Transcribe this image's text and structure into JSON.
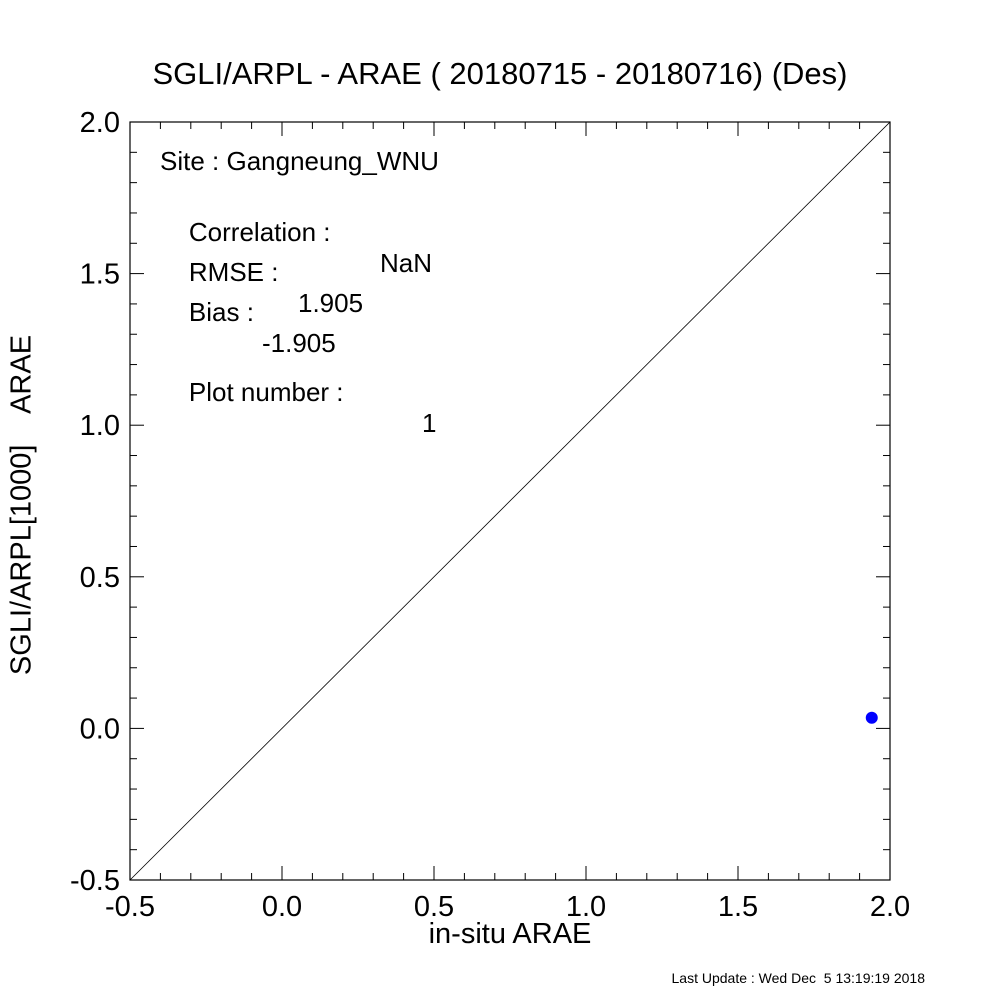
{
  "chart_data": {
    "type": "scatter",
    "title": "SGLI/ARPL - ARAE ( 20180715 - 20180716) (Des)",
    "xlabel": "in-situ ARAE",
    "ylabel": "SGLI/ARPL[1000]    ARAE",
    "xlim": [
      -0.5,
      2.0
    ],
    "ylim": [
      -0.5,
      2.0
    ],
    "xticks": [
      "-0.5",
      "0.0",
      "0.5",
      "1.0",
      "1.5",
      "2.0"
    ],
    "yticks": [
      "-0.5",
      "0.0",
      "0.5",
      "1.0",
      "1.5",
      "2.0"
    ],
    "reference_line": "1:1",
    "points": [
      {
        "x": 1.94,
        "y": 0.035
      }
    ],
    "point_color": "#0000ff",
    "grid": false,
    "annotations": {
      "site_label": "Site : Gangneung_WNU",
      "correlation_label": "Correlation :",
      "correlation_value": "NaN",
      "rmse_label": "RMSE :",
      "rmse_value": "1.905",
      "bias_label": "Bias :",
      "bias_value": "-1.905",
      "plot_number_label": "Plot number :",
      "plot_number_value": "1"
    }
  },
  "footer": "Last Update : Wed Dec  5 13:19:19 2018"
}
